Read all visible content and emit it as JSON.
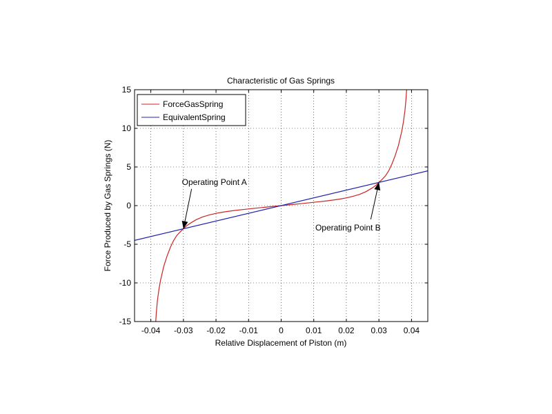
{
  "chart_data": {
    "type": "line",
    "title": "Characteristic of Gas Springs",
    "xlabel": "Relative Displacement of Piston (m)",
    "ylabel": "Force Produced by Gas Springs (N)",
    "xlim": [
      -0.045,
      0.045
    ],
    "ylim": [
      -15,
      15
    ],
    "xticks": [
      -0.04,
      -0.03,
      -0.02,
      -0.01,
      0,
      0.01,
      0.02,
      0.03,
      0.04
    ],
    "xtick_labels": [
      "-0.04",
      "-0.03",
      "-0.02",
      "-0.01",
      "0",
      "0.01",
      "0.02",
      "0.03",
      "0.04"
    ],
    "yticks": [
      -15,
      -10,
      -5,
      0,
      5,
      10,
      15
    ],
    "ytick_labels": [
      "-15",
      "-10",
      "-5",
      "0",
      "5",
      "10",
      "15"
    ],
    "grid": true,
    "legend_position": "top-left",
    "series": [
      {
        "name": "ForceGasSpring",
        "color": "#cc2222",
        "x": [
          -0.0385,
          -0.0383,
          -0.038,
          -0.0375,
          -0.037,
          -0.036,
          -0.035,
          -0.034,
          -0.033,
          -0.032,
          -0.031,
          -0.03,
          -0.029,
          -0.028,
          -0.026,
          -0.024,
          -0.022,
          -0.02,
          -0.018,
          -0.016,
          -0.014,
          -0.012,
          -0.01,
          -0.008,
          -0.006,
          -0.004,
          -0.002,
          0,
          0.002,
          0.004,
          0.006,
          0.008,
          0.01,
          0.012,
          0.014,
          0.016,
          0.018,
          0.02,
          0.022,
          0.024,
          0.026,
          0.028,
          0.029,
          0.03,
          0.031,
          0.032,
          0.033,
          0.034,
          0.035,
          0.036,
          0.037,
          0.0375,
          0.038,
          0.0383,
          0.0385
        ],
        "y": [
          -15.0,
          -13.8,
          -12.3,
          -10.8,
          -9.6,
          -7.8,
          -6.5,
          -5.4,
          -4.5,
          -3.85,
          -3.4,
          -3.0,
          -2.6,
          -2.3,
          -1.8,
          -1.45,
          -1.2,
          -1.0,
          -0.85,
          -0.72,
          -0.62,
          -0.52,
          -0.43,
          -0.34,
          -0.25,
          -0.17,
          -0.08,
          0.0,
          0.08,
          0.17,
          0.25,
          0.34,
          0.43,
          0.52,
          0.62,
          0.72,
          0.85,
          1.0,
          1.2,
          1.45,
          1.8,
          2.3,
          2.6,
          3.0,
          3.4,
          3.85,
          4.5,
          5.4,
          6.5,
          7.8,
          9.6,
          10.8,
          12.3,
          13.8,
          15.0
        ]
      },
      {
        "name": "EquivalentSpring",
        "color": "#2020b0",
        "x": [
          -0.045,
          0.045
        ],
        "y": [
          -4.5,
          4.5
        ]
      }
    ],
    "annotations": [
      {
        "text": "Operating Point A",
        "point": [
          -0.03,
          -3.0
        ],
        "label_at": [
          -0.0205,
          2.7
        ]
      },
      {
        "text": "Operating Point B",
        "point": [
          0.03,
          3.0
        ],
        "label_at": [
          0.0205,
          -3.2
        ]
      }
    ]
  }
}
